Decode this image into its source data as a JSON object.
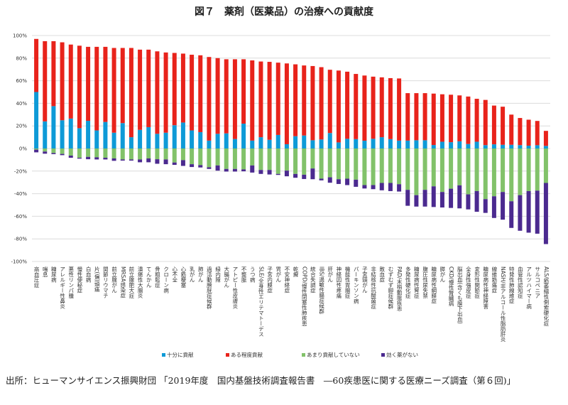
{
  "title": "図７　薬剤（医薬品）の治療への貢献度",
  "source": "出所：ヒューマンサイエンス振興財団 「2019年度　国内基盤技術調査報告書　―60疾患医に関する医療ニーズ調査（第６回)」",
  "chart_data": {
    "type": "bar",
    "stacked": true,
    "title": "",
    "xlabel": "",
    "ylabel": "",
    "ylim": [
      -100,
      100
    ],
    "yticks": [
      "100%",
      "80%",
      "60%",
      "40%",
      "20%",
      "0%",
      "-20%",
      "-40%",
      "-60%",
      "-80%",
      "-100%"
    ],
    "grid": true,
    "legend_position": "bottom",
    "categories": [
      "高血圧症",
      "喘息",
      "糖尿病",
      "アレルギー性鼻炎",
      "悪性リンパ腫",
      "慢性便秘症",
      "白血病",
      "片(偏)頭痛",
      "関節リウマチ",
      "前立腺がん",
      "MRSA感染症",
      "前立腺肥大症",
      "潰瘍性大腸炎",
      "てんかん",
      "骨粗鬆症",
      "クローン病",
      "心不全",
      "心筋梗塞",
      "乳がん",
      "肺がん",
      "過活動膀胱症候群",
      "緑内障",
      "大腸がん",
      "アトピー性皮膚炎",
      "不整脈",
      "うつ病",
      "SLE/全身性エリテマトーデス",
      "子宮内膜症",
      "胃がん",
      "不安神経症",
      "乾癬",
      "COPD/慢性閉塞性肺疾患",
      "統合失調症",
      "IBS/過敏性腸症候群",
      "肝がん",
      "神経因性疼痛",
      "機能性胃腸症",
      "パーキンソン病",
      "子宮頸がん",
      "非結核性抗酸菌症",
      "敗血症",
      "むずむず脚症候群",
      "PAD/末梢動脈疾患",
      "多発性硬化症",
      "糖尿病性腎症",
      "腹圧性尿失禁",
      "糖尿病性網膜症",
      "膵がん",
      "CKD/慢性腎臓病",
      "脳出血(含くも膜下出血)",
      "全身性強皮症",
      "変形性関節症",
      "糖尿病性神経障害",
      "線維筋痛症",
      "NASH/非アルコール性脂肪肝炎",
      "特発性肺線維症",
      "血管性認知症",
      "アルツハイマー病",
      "サルコペニア",
      "ALS/筋萎縮性側索硬化症"
    ],
    "series": [
      {
        "name": "十分に貢献",
        "color": "#0e9ad7",
        "direction": "positive",
        "values": [
          50,
          24,
          37.5,
          25,
          26.5,
          18,
          24.5,
          16,
          23.5,
          14,
          22.5,
          10,
          16.5,
          18.9,
          13,
          14,
          20.6,
          23,
          16,
          14.5,
          7,
          13,
          13.4,
          8.4,
          22,
          7,
          10,
          7.7,
          12,
          3.8,
          10.9,
          11.5,
          7.3,
          8,
          13.7,
          5.4,
          8.6,
          8.3,
          6.9,
          8.6,
          10,
          8.3,
          7,
          7,
          7.3,
          7.3,
          3.1,
          6,
          5.6,
          6.4,
          4,
          6,
          3,
          3.7,
          3.3,
          3.3,
          3,
          2.5,
          2.9,
          2.3
        ]
      },
      {
        "name": "ある程度貢献",
        "color": "#e8231b",
        "direction": "positive",
        "values": [
          47,
          71,
          57.5,
          69,
          65.5,
          73,
          65.5,
          74,
          66.5,
          75,
          66.5,
          79,
          71,
          68.6,
          73,
          71,
          64,
          61,
          67,
          68,
          74,
          67,
          65.6,
          70.6,
          57,
          71,
          67,
          69,
          64,
          71.5,
          63.6,
          62,
          65.7,
          64,
          56,
          63.6,
          59.4,
          57.7,
          57.7,
          55,
          53,
          54,
          55,
          42,
          41.7,
          41.7,
          45.5,
          42,
          42,
          40.6,
          42,
          38,
          40,
          34.3,
          33.7,
          26.7,
          24,
          23,
          21.5,
          13.3
        ]
      },
      {
        "name": "あまり貢献していない",
        "color": "#82c26a",
        "direction": "negative",
        "values": [
          1,
          2.7,
          4,
          4.8,
          6.3,
          8.2,
          7.4,
          7.8,
          8.2,
          8.8,
          9.7,
          9.7,
          9.7,
          8.8,
          9.5,
          9.7,
          12.4,
          10.3,
          13.9,
          14.7,
          16.6,
          15,
          18.1,
          18.1,
          18.5,
          15,
          19,
          19,
          22.5,
          19.6,
          22.5,
          23.2,
          17.7,
          26.7,
          25.5,
          27.2,
          26.7,
          27.6,
          32.4,
          32.4,
          30.5,
          30.5,
          31.6,
          36.6,
          41.3,
          36.6,
          33.5,
          38.5,
          35.6,
          32.6,
          40.6,
          37.7,
          44.8,
          42.3,
          38.5,
          46.7,
          41.3,
          37.7,
          37.3,
          30.5
        ]
      },
      {
        "name": "効く薬がない",
        "color": "#4b2a8f",
        "direction": "negative",
        "values": [
          2.4,
          1.9,
          1,
          1.1,
          1.9,
          0.8,
          2.1,
          1.9,
          1.5,
          2.1,
          1,
          1,
          2.5,
          3.4,
          4,
          4.2,
          2.1,
          5.1,
          2.5,
          2.1,
          1.5,
          4.6,
          2.3,
          2.3,
          1.7,
          6.3,
          3.5,
          4,
          0.9,
          5,
          3.4,
          3.8,
          9.5,
          1.5,
          4.8,
          4.2,
          5.7,
          6.3,
          3,
          3.6,
          6.5,
          7.2,
          6.5,
          14.1,
          10.1,
          14.8,
          18.3,
          13.7,
          17,
          20.4,
          13.3,
          18.3,
          12.2,
          19.2,
          24.5,
          23.6,
          31.5,
          36.8,
          38.1,
          54.1
        ]
      }
    ]
  }
}
